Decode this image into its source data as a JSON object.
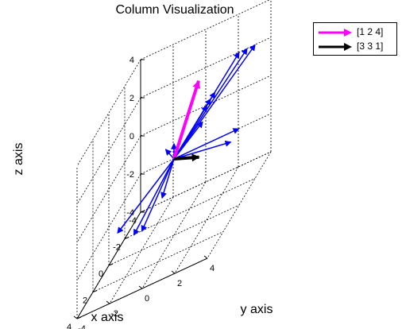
{
  "chart_data": {
    "type": "3d-vector-plot",
    "title": "Column Visualization",
    "xlabel": "x axis",
    "ylabel": "y axis",
    "zlabel": "z axis",
    "xlim": [
      -4,
      4
    ],
    "ylim": [
      -4,
      4
    ],
    "zlim": [
      -4,
      4
    ],
    "xticks": [
      "-4",
      "-2",
      "0",
      "2",
      "4"
    ],
    "yticks": [
      "-4",
      "-2",
      "0",
      "2",
      "4"
    ],
    "zticks": [
      "-4",
      "-2",
      "0",
      "2",
      "4"
    ],
    "grid": true,
    "legend_position": "top-right",
    "legend": [
      {
        "label": "[1 2 4]",
        "color": "#ff00ff"
      },
      {
        "label": "[3 3 1]",
        "color": "#000000"
      }
    ],
    "highlighted_vectors": [
      {
        "name": "[1 2 4]",
        "color": "#ff00ff",
        "vector": [
          1,
          2,
          4
        ]
      },
      {
        "name": "[3 3 1]",
        "color": "#000000",
        "vector": [
          3,
          3,
          1
        ]
      }
    ],
    "other_vectors_color": "#0000ff",
    "other_vectors": [
      [
        0,
        4,
        4
      ],
      [
        -1,
        4,
        3.5
      ],
      [
        -2,
        4,
        3
      ],
      [
        1,
        3,
        3
      ],
      [
        2,
        3,
        3
      ],
      [
        0.5,
        2,
        1.5
      ],
      [
        -0.5,
        2,
        2
      ],
      [
        -2,
        3,
        -1
      ],
      [
        -1,
        3,
        -1
      ],
      [
        -1,
        -1,
        0.2
      ],
      [
        3,
        -2,
        -1
      ],
      [
        3,
        -1,
        -1.5
      ],
      [
        2,
        -1,
        -2
      ],
      [
        1.5,
        0,
        -1
      ],
      [
        0,
        0,
        0.8
      ]
    ]
  }
}
